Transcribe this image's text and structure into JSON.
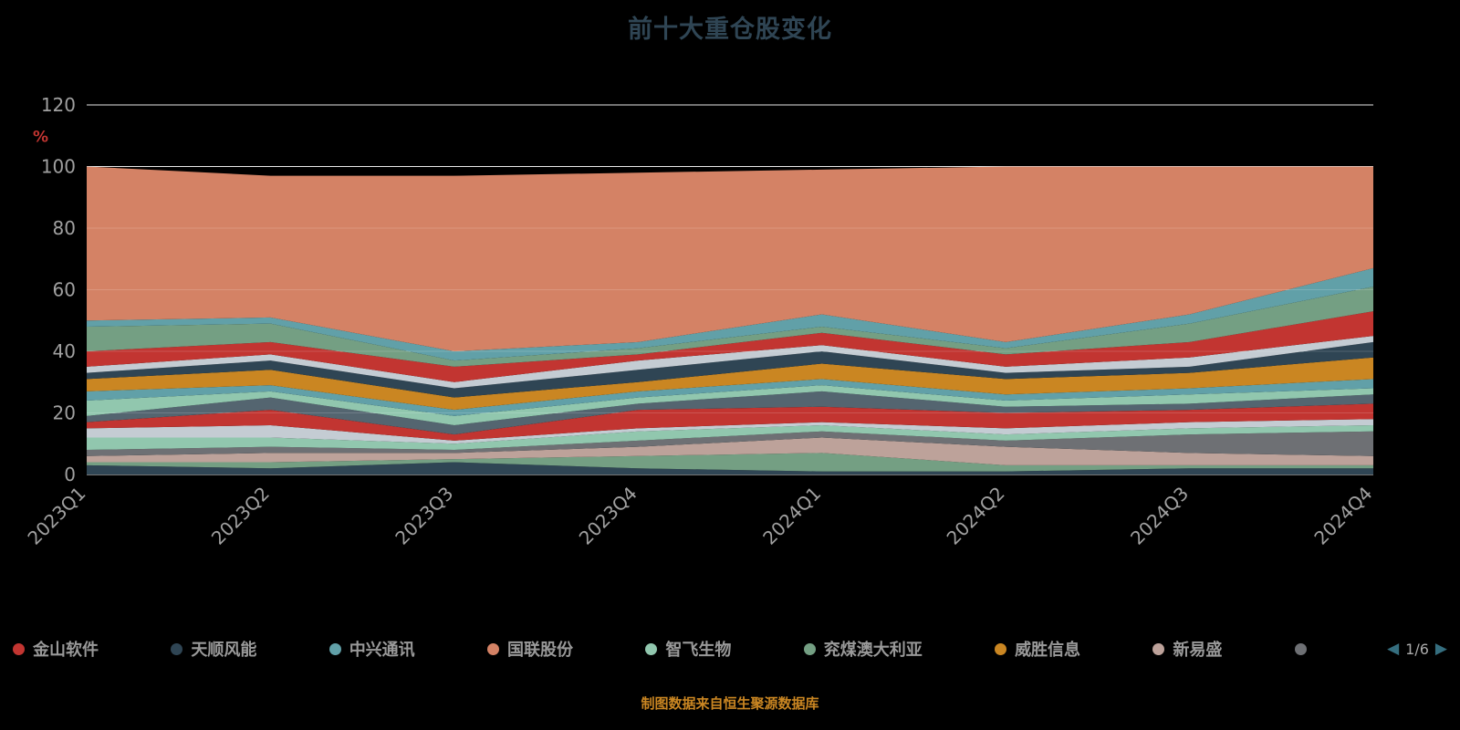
{
  "title": "前十大重仓股变化",
  "caption": "制图数据来自恒生聚源数据库",
  "colors": {
    "background": "#000000",
    "title": "#2f4554",
    "axis_label": "#a0a0a0",
    "grid_line": "#e8e8e8",
    "grid_overlay": "#ffffff",
    "percent_label": "#c23531",
    "caption": "#ca8622",
    "legend_text": "#999999",
    "pager_arrow": "#356e7f",
    "pager_text": "#aaaaaa"
  },
  "legend": {
    "items": [
      {
        "label": "金山软件",
        "color": "#c23531"
      },
      {
        "label": "天顺风能",
        "color": "#2f4554"
      },
      {
        "label": "中兴通讯",
        "color": "#61a0a8"
      },
      {
        "label": "国联股份",
        "color": "#d48265"
      },
      {
        "label": "智飞生物",
        "color": "#91c7ae"
      },
      {
        "label": "兖煤澳大利亚",
        "color": "#749f83"
      },
      {
        "label": "威胜信息",
        "color": "#ca8622"
      },
      {
        "label": "新易盛",
        "color": "#bda29a"
      },
      {
        "label": "",
        "color": "#6e7074"
      }
    ],
    "pager": {
      "text": "1/6",
      "current": 1,
      "total": 6
    }
  },
  "chart_data": {
    "type": "area",
    "stacked": true,
    "title": "前十大重仓股变化",
    "xlabel": "",
    "ylabel": "%",
    "ylim": [
      0,
      120
    ],
    "yticks": [
      0,
      20,
      40,
      60,
      80,
      100,
      120
    ],
    "grid": true,
    "legend_position": "bottom",
    "x": [
      "2023Q1",
      "2023Q2",
      "2023Q3",
      "2023Q4",
      "2024Q1",
      "2024Q2",
      "2024Q3",
      "2024Q4"
    ],
    "series": [
      {
        "name": "天顺风能",
        "color": "#2f4554",
        "values": [
          3,
          2,
          4,
          2,
          1,
          1,
          2,
          2
        ]
      },
      {
        "name": "兖煤澳大利亚",
        "color": "#749f83",
        "values": [
          1,
          2,
          1,
          4,
          6,
          2,
          1,
          1
        ]
      },
      {
        "name": "新易盛",
        "color": "#bda29a",
        "values": [
          2,
          3,
          2,
          3,
          5,
          6,
          4,
          3
        ]
      },
      {
        "name": "",
        "color": "#6e7074",
        "values": [
          2,
          2,
          1,
          2,
          2,
          2,
          6,
          8
        ]
      },
      {
        "name": "智飞生物",
        "color": "#91c7ae",
        "values": [
          4,
          3,
          2,
          3,
          2,
          2,
          2,
          2
        ]
      },
      {
        "name": "",
        "color": "#c4ccd3",
        "values": [
          3,
          4,
          1,
          1,
          1,
          2,
          2,
          2
        ]
      },
      {
        "name": "金山软件",
        "color": "#c23531",
        "values": [
          2,
          5,
          2,
          6,
          5,
          5,
          4,
          5
        ]
      },
      {
        "name": "",
        "color": "#546570",
        "values": [
          2,
          4,
          3,
          2,
          5,
          2,
          2,
          3
        ]
      },
      {
        "name": "",
        "color": "#91c7ae",
        "values": [
          5,
          2,
          3,
          2,
          2,
          2,
          3,
          2
        ]
      },
      {
        "name": "中兴通讯",
        "color": "#61a0a8",
        "values": [
          3,
          2,
          2,
          2,
          2,
          2,
          2,
          3
        ]
      },
      {
        "name": "威胜信息",
        "color": "#ca8622",
        "values": [
          4,
          5,
          4,
          3,
          5,
          5,
          5,
          7
        ]
      },
      {
        "name": "",
        "color": "#2f4554",
        "values": [
          2,
          3,
          3,
          4,
          4,
          2,
          2,
          5
        ]
      },
      {
        "name": "",
        "color": "#c4ccd3",
        "values": [
          2,
          2,
          2,
          3,
          2,
          2,
          3,
          2
        ]
      },
      {
        "name": "",
        "color": "#c23531",
        "values": [
          5,
          4,
          5,
          2,
          4,
          4,
          5,
          8
        ]
      },
      {
        "name": "",
        "color": "#749f83",
        "values": [
          8,
          6,
          2,
          2,
          2,
          2,
          6,
          8
        ]
      },
      {
        "name": "",
        "color": "#61a0a8",
        "values": [
          2,
          2,
          3,
          2,
          4,
          2,
          3,
          6
        ]
      },
      {
        "name": "国联股份",
        "color": "#d48265",
        "values": [
          50,
          46,
          57,
          55,
          47,
          57,
          48,
          33
        ]
      }
    ]
  }
}
